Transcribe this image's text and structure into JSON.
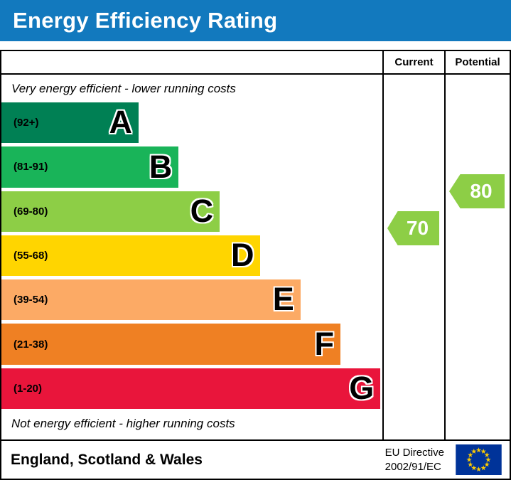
{
  "header": {
    "title": "Energy Efficiency Rating",
    "background": "#1279be"
  },
  "table": {
    "current_label": "Current",
    "potential_label": "Potential",
    "top_note": "Very energy efficient - lower running costs",
    "bottom_note": "Not energy efficient - higher running costs"
  },
  "chart_data": {
    "type": "bar",
    "title": "Energy Efficiency Rating",
    "categories": [
      "A",
      "B",
      "C",
      "D",
      "E",
      "F",
      "G"
    ],
    "bands": [
      {
        "letter": "A",
        "range": "(92+)",
        "color": "#008054",
        "width_pct": 36
      },
      {
        "letter": "B",
        "range": "(81-91)",
        "color": "#19b459",
        "width_pct": 46.5
      },
      {
        "letter": "C",
        "range": "(69-80)",
        "color": "#8dce46",
        "width_pct": 57.3
      },
      {
        "letter": "D",
        "range": "(55-68)",
        "color": "#ffd500",
        "width_pct": 68
      },
      {
        "letter": "E",
        "range": "(39-54)",
        "color": "#fcaa65",
        "width_pct": 78.5
      },
      {
        "letter": "F",
        "range": "(21-38)",
        "color": "#ef8023",
        "width_pct": 89
      },
      {
        "letter": "G",
        "range": "(1-20)",
        "color": "#e9153b",
        "width_pct": 99.5
      }
    ],
    "current": {
      "value": "70",
      "color": "#8dce46"
    },
    "potential": {
      "value": "80",
      "color": "#8dce46"
    },
    "annotations": [
      "Very energy efficient - lower running costs",
      "Not energy efficient - higher running costs"
    ]
  },
  "footer": {
    "region": "England, Scotland & Wales",
    "directive_line1": "EU Directive",
    "directive_line2": "2002/91/EC",
    "flag": {
      "field": "#003399",
      "stars": "#ffcc00"
    }
  }
}
